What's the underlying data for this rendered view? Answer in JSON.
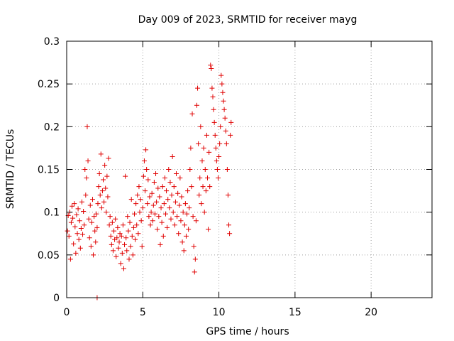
{
  "chart_data": {
    "type": "scatter",
    "title": "Day 009 of 2023, SRMTID for receiver mayg",
    "xlabel": "GPS time / hours",
    "ylabel": "SRMTID / TECUs",
    "xlim": [
      0,
      24
    ],
    "ylim": [
      0,
      0.3
    ],
    "xticks": [
      0,
      5,
      10,
      15,
      20
    ],
    "xtick_labels": [
      "0",
      "5",
      "10",
      "15",
      "20"
    ],
    "yticks": [
      0,
      0.05,
      0.1,
      0.15,
      0.2,
      0.25,
      0.3
    ],
    "ytick_labels": [
      "0",
      "0.05",
      "0.1",
      "0.15",
      "0.2",
      "0.25",
      "0.3"
    ],
    "grid": true,
    "marker": "plus",
    "color": "#e00000",
    "series": [
      {
        "name": "SRMTID",
        "points": [
          [
            0.05,
            0.078
          ],
          [
            0.1,
            0.096
          ],
          [
            0.15,
            0.072
          ],
          [
            0.2,
            0.1
          ],
          [
            0.25,
            0.045
          ],
          [
            0.3,
            0.088
          ],
          [
            0.35,
            0.107
          ],
          [
            0.4,
            0.093
          ],
          [
            0.45,
            0.063
          ],
          [
            0.5,
            0.11
          ],
          [
            0.55,
            0.083
          ],
          [
            0.6,
            0.052
          ],
          [
            0.65,
            0.097
          ],
          [
            0.7,
            0.075
          ],
          [
            0.75,
            0.104
          ],
          [
            0.8,
            0.068
          ],
          [
            0.85,
            0.09
          ],
          [
            0.9,
            0.058
          ],
          [
            0.95,
            0.081
          ],
          [
            1.0,
            0.112
          ],
          [
            1.05,
            0.074
          ],
          [
            1.1,
            0.101
          ],
          [
            1.15,
            0.085
          ],
          [
            1.2,
            0.15
          ],
          [
            1.25,
            0.12
          ],
          [
            1.3,
            0.14
          ],
          [
            1.35,
            0.2
          ],
          [
            1.4,
            0.16
          ],
          [
            1.45,
            0.092
          ],
          [
            1.5,
            0.07
          ],
          [
            1.55,
            0.108
          ],
          [
            1.6,
            0.06
          ],
          [
            1.65,
            0.088
          ],
          [
            1.7,
            0.115
          ],
          [
            1.75,
            0.05
          ],
          [
            1.8,
            0.095
          ],
          [
            1.85,
            0.078
          ],
          [
            1.9,
            0.065
          ],
          [
            1.95,
            0.098
          ],
          [
            2.0,
            0.082
          ],
          [
            2.05,
            0.11
          ],
          [
            2.1,
            0.13
          ],
          [
            2.15,
            0.145
          ],
          [
            2.2,
            0.12
          ],
          [
            2.25,
            0.168
          ],
          [
            2.3,
            0.105
          ],
          [
            2.35,
            0.125
          ],
          [
            2.4,
            0.138
          ],
          [
            2.45,
            0.112
          ],
          [
            2.5,
            0.155
          ],
          [
            2.55,
            0.128
          ],
          [
            2.6,
            0.1
          ],
          [
            2.65,
            0.142
          ],
          [
            2.7,
            0.118
          ],
          [
            2.75,
            0.163
          ],
          [
            2.8,
            0.085
          ],
          [
            2.85,
            0.095
          ],
          [
            2.9,
            0.072
          ],
          [
            2.95,
            0.062
          ],
          [
            3.0,
            0.088
          ],
          [
            3.05,
            0.055
          ],
          [
            3.1,
            0.078
          ],
          [
            3.15,
            0.068
          ],
          [
            3.2,
            0.092
          ],
          [
            3.25,
            0.048
          ],
          [
            3.3,
            0.07
          ],
          [
            3.35,
            0.082
          ],
          [
            3.4,
            0.058
          ],
          [
            3.45,
            0.065
          ],
          [
            3.5,
            0.075
          ],
          [
            3.55,
            0.04
          ],
          [
            3.6,
            0.072
          ],
          [
            3.65,
            0.052
          ],
          [
            3.7,
            0.085
          ],
          [
            3.75,
            0.034
          ],
          [
            3.8,
            0.062
          ],
          [
            3.85,
            0.142
          ],
          [
            3.9,
            0.07
          ],
          [
            3.95,
            0.055
          ],
          [
            4.0,
            0.095
          ],
          [
            4.05,
            0.078
          ],
          [
            4.1,
            0.045
          ],
          [
            4.15,
            0.088
          ],
          [
            4.2,
            0.06
          ],
          [
            4.25,
            0.115
          ],
          [
            4.3,
            0.072
          ],
          [
            4.35,
            0.05
          ],
          [
            4.4,
            0.082
          ],
          [
            4.45,
            0.098
          ],
          [
            4.5,
            0.068
          ],
          [
            4.55,
            0.11
          ],
          [
            4.6,
            0.085
          ],
          [
            4.65,
            0.12
          ],
          [
            4.7,
            0.075
          ],
          [
            4.75,
            0.13
          ],
          [
            4.8,
            0.1
          ],
          [
            4.85,
            0.115
          ],
          [
            4.9,
            0.09
          ],
          [
            4.95,
            0.06
          ],
          [
            5.0,
            0.105
          ],
          [
            5.05,
            0.142
          ],
          [
            5.1,
            0.16
          ],
          [
            5.15,
            0.125
          ],
          [
            5.2,
            0.173
          ],
          [
            5.25,
            0.15
          ],
          [
            5.3,
            0.11
          ],
          [
            5.35,
            0.138
          ],
          [
            5.4,
            0.095
          ],
          [
            5.45,
            0.118
          ],
          [
            5.5,
            0.085
          ],
          [
            5.55,
            0.1
          ],
          [
            5.6,
            0.122
          ],
          [
            5.65,
            0.09
          ],
          [
            5.7,
            0.108
          ],
          [
            5.75,
            0.135
          ],
          [
            5.8,
            0.098
          ],
          [
            5.85,
            0.145
          ],
          [
            5.9,
            0.112
          ],
          [
            5.95,
            0.08
          ],
          [
            6.0,
            0.128
          ],
          [
            6.05,
            0.095
          ],
          [
            6.1,
            0.118
          ],
          [
            6.15,
            0.062
          ],
          [
            6.2,
            0.105
          ],
          [
            6.25,
            0.088
          ],
          [
            6.3,
            0.13
          ],
          [
            6.35,
            0.072
          ],
          [
            6.4,
            0.11
          ],
          [
            6.45,
            0.14
          ],
          [
            6.5,
            0.098
          ],
          [
            6.55,
            0.125
          ],
          [
            6.6,
            0.082
          ],
          [
            6.65,
            0.115
          ],
          [
            6.7,
            0.15
          ],
          [
            6.75,
            0.105
          ],
          [
            6.8,
            0.135
          ],
          [
            6.85,
            0.092
          ],
          [
            6.9,
            0.12
          ],
          [
            6.95,
            0.165
          ],
          [
            7.0,
            0.1
          ],
          [
            7.05,
            0.13
          ],
          [
            7.1,
            0.085
          ],
          [
            7.15,
            0.112
          ],
          [
            7.2,
            0.145
          ],
          [
            7.25,
            0.095
          ],
          [
            7.3,
            0.122
          ],
          [
            7.35,
            0.075
          ],
          [
            7.4,
            0.108
          ],
          [
            7.45,
            0.14
          ],
          [
            7.5,
            0.09
          ],
          [
            7.55,
            0.118
          ],
          [
            7.6,
            0.065
          ],
          [
            7.65,
            0.1
          ],
          [
            7.7,
            0.055
          ],
          [
            7.75,
            0.085
          ],
          [
            7.8,
            0.11
          ],
          [
            7.85,
            0.072
          ],
          [
            7.9,
            0.098
          ],
          [
            7.95,
            0.125
          ],
          [
            8.0,
            0.08
          ],
          [
            8.05,
            0.105
          ],
          [
            8.1,
            0.15
          ],
          [
            8.15,
            0.175
          ],
          [
            8.2,
            0.13
          ],
          [
            8.25,
            0.215
          ],
          [
            8.3,
            0.095
          ],
          [
            8.35,
            0.06
          ],
          [
            8.4,
            0.03
          ],
          [
            8.45,
            0.045
          ],
          [
            8.5,
            0.09
          ],
          [
            8.55,
            0.225
          ],
          [
            8.6,
            0.245
          ],
          [
            8.65,
            0.18
          ],
          [
            8.7,
            0.12
          ],
          [
            8.75,
            0.14
          ],
          [
            8.8,
            0.2
          ],
          [
            8.85,
            0.11
          ],
          [
            8.9,
            0.16
          ],
          [
            8.95,
            0.13
          ],
          [
            9.0,
            0.175
          ],
          [
            9.05,
            0.1
          ],
          [
            9.1,
            0.15
          ],
          [
            9.15,
            0.125
          ],
          [
            9.2,
            0.19
          ],
          [
            9.25,
            0.14
          ],
          [
            9.3,
            0.08
          ],
          [
            9.35,
            0.17
          ],
          [
            9.4,
            0.13
          ],
          [
            9.45,
            0.272
          ],
          [
            9.5,
            0.268
          ],
          [
            9.55,
            0.245
          ],
          [
            9.6,
            0.235
          ],
          [
            9.65,
            0.22
          ],
          [
            9.7,
            0.205
          ],
          [
            9.75,
            0.19
          ],
          [
            9.8,
            0.175
          ],
          [
            9.85,
            0.16
          ],
          [
            9.9,
            0.15
          ],
          [
            9.95,
            0.14
          ],
          [
            10.0,
            0.165
          ],
          [
            10.05,
            0.18
          ],
          [
            10.1,
            0.2
          ],
          [
            10.15,
            0.26
          ],
          [
            10.2,
            0.25
          ],
          [
            10.25,
            0.24
          ],
          [
            10.3,
            0.23
          ],
          [
            10.35,
            0.22
          ],
          [
            10.4,
            0.21
          ],
          [
            10.45,
            0.195
          ],
          [
            10.5,
            0.18
          ],
          [
            10.55,
            0.15
          ],
          [
            10.6,
            0.12
          ],
          [
            10.65,
            0.085
          ],
          [
            10.7,
            0.075
          ],
          [
            10.75,
            0.19
          ],
          [
            10.8,
            0.205
          ],
          [
            2.0,
            0.0
          ]
        ]
      }
    ]
  }
}
